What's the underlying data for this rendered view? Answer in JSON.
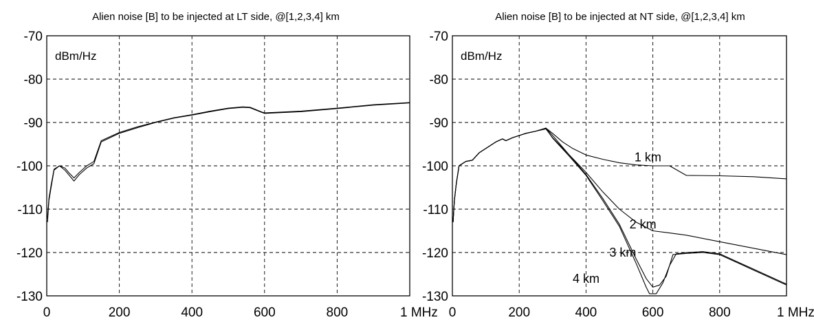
{
  "chart_data": [
    {
      "type": "line",
      "title": "Alien noise [B] to be injected at LT side, @[1,2,3,4] km",
      "ylabel": "dBm/Hz",
      "xlim": [
        0,
        1000
      ],
      "ylim": [
        -130,
        -70
      ],
      "xticks": [
        "0",
        "200",
        "400",
        "600",
        "800",
        "1 MHz"
      ],
      "yticks": [
        "-70",
        "-80",
        "-90",
        "-100",
        "-110",
        "-120",
        "-130"
      ],
      "grid": true,
      "series": [
        {
          "values": [
            [
              2,
              -113
            ],
            [
              6,
              -108
            ],
            [
              12,
              -105
            ],
            [
              20,
              -101
            ],
            [
              35,
              -100
            ],
            [
              50,
              -101
            ],
            [
              60,
              -102
            ],
            [
              75,
              -103.5
            ],
            [
              90,
              -102
            ],
            [
              110,
              -100.5
            ],
            [
              130,
              -99.5
            ],
            [
              150,
              -94.5
            ],
            [
              200,
              -92.5
            ],
            [
              250,
              -91.2
            ],
            [
              300,
              -90
            ],
            [
              350,
              -89
            ],
            [
              400,
              -88.3
            ],
            [
              450,
              -87.5
            ],
            [
              500,
              -86.8
            ],
            [
              540,
              -86.5
            ],
            [
              560,
              -86.6
            ],
            [
              590,
              -87.6
            ],
            [
              600,
              -87.9
            ],
            [
              700,
              -87.5
            ],
            [
              800,
              -86.8
            ],
            [
              900,
              -86
            ],
            [
              1000,
              -85.5
            ]
          ]
        },
        {
          "values": [
            [
              2,
              -112
            ],
            [
              6,
              -107.5
            ],
            [
              12,
              -104.5
            ],
            [
              20,
              -100.8
            ],
            [
              35,
              -100
            ],
            [
              50,
              -100.5
            ],
            [
              60,
              -101.5
            ],
            [
              75,
              -102.8
            ],
            [
              90,
              -101.5
            ],
            [
              110,
              -100
            ],
            [
              130,
              -99
            ],
            [
              150,
              -94.2
            ],
            [
              200,
              -92.3
            ],
            [
              250,
              -91
            ],
            [
              300,
              -89.9
            ],
            [
              350,
              -88.9
            ],
            [
              400,
              -88.2
            ],
            [
              450,
              -87.4
            ],
            [
              500,
              -86.7
            ],
            [
              540,
              -86.4
            ],
            [
              560,
              -86.5
            ],
            [
              590,
              -87.5
            ],
            [
              600,
              -87.8
            ],
            [
              700,
              -87.4
            ],
            [
              800,
              -86.7
            ],
            [
              900,
              -85.9
            ],
            [
              1000,
              -85.4
            ]
          ]
        }
      ]
    },
    {
      "type": "line",
      "title": "Alien noise [B] to be injected at NT side, @[1,2,3,4] km",
      "ylabel": "dBm/Hz",
      "xlim": [
        0,
        1000
      ],
      "ylim": [
        -130,
        -70
      ],
      "xticks": [
        "0",
        "200",
        "400",
        "600",
        "800",
        "1 MHz"
      ],
      "yticks": [
        "-70",
        "-80",
        "-90",
        "-100",
        "-110",
        "-120",
        "-130"
      ],
      "grid": true,
      "annotations": [
        {
          "text": "1 km",
          "x": 545,
          "y": -98
        },
        {
          "text": "2 km",
          "x": 530,
          "y": -113.5
        },
        {
          "text": "3 km",
          "x": 470,
          "y": -120
        },
        {
          "text": "4 km",
          "x": 360,
          "y": -126
        }
      ],
      "series": [
        {
          "values": [
            [
              2,
              -113
            ],
            [
              6,
              -108
            ],
            [
              12,
              -104
            ],
            [
              20,
              -100
            ],
            [
              40,
              -99
            ],
            [
              60,
              -98.7
            ],
            [
              80,
              -97
            ],
            [
              100,
              -96
            ],
            [
              130,
              -94.5
            ],
            [
              150,
              -93.8
            ],
            [
              160,
              -94.2
            ],
            [
              180,
              -93.5
            ],
            [
              220,
              -92.5
            ],
            [
              250,
              -92
            ],
            [
              280,
              -91.3
            ],
            [
              300,
              -92.5
            ],
            [
              330,
              -94.5
            ],
            [
              360,
              -96
            ],
            [
              400,
              -97.5
            ],
            [
              450,
              -98.5
            ],
            [
              500,
              -99.3
            ],
            [
              550,
              -99.8
            ],
            [
              600,
              -100
            ],
            [
              650,
              -100
            ],
            [
              700,
              -102.2
            ],
            [
              800,
              -102.3
            ],
            [
              900,
              -102.5
            ],
            [
              1000,
              -103
            ]
          ]
        },
        {
          "values": [
            [
              2,
              -113
            ],
            [
              6,
              -108
            ],
            [
              12,
              -104
            ],
            [
              20,
              -100
            ],
            [
              40,
              -99
            ],
            [
              60,
              -98.7
            ],
            [
              80,
              -97
            ],
            [
              100,
              -96
            ],
            [
              130,
              -94.5
            ],
            [
              150,
              -93.8
            ],
            [
              160,
              -94.2
            ],
            [
              180,
              -93.5
            ],
            [
              220,
              -92.5
            ],
            [
              250,
              -92
            ],
            [
              280,
              -91.3
            ],
            [
              300,
              -93
            ],
            [
              350,
              -97.5
            ],
            [
              400,
              -101.5
            ],
            [
              450,
              -106
            ],
            [
              500,
              -110
            ],
            [
              550,
              -113
            ],
            [
              600,
              -115
            ],
            [
              650,
              -115.5
            ],
            [
              700,
              -116
            ],
            [
              800,
              -117.5
            ],
            [
              900,
              -119
            ],
            [
              1000,
              -120.5
            ]
          ]
        },
        {
          "values": [
            [
              2,
              -113
            ],
            [
              6,
              -108
            ],
            [
              12,
              -104
            ],
            [
              20,
              -100
            ],
            [
              40,
              -99
            ],
            [
              60,
              -98.7
            ],
            [
              80,
              -97
            ],
            [
              100,
              -96
            ],
            [
              130,
              -94.5
            ],
            [
              150,
              -93.8
            ],
            [
              160,
              -94.2
            ],
            [
              180,
              -93.5
            ],
            [
              220,
              -92.5
            ],
            [
              250,
              -92
            ],
            [
              280,
              -91.5
            ],
            [
              300,
              -93.5
            ],
            [
              350,
              -97.5
            ],
            [
              400,
              -102
            ],
            [
              450,
              -107.5
            ],
            [
              500,
              -113.5
            ],
            [
              550,
              -121.5
            ],
            [
              580,
              -126
            ],
            [
              600,
              -128
            ],
            [
              620,
              -127.5
            ],
            [
              640,
              -125.5
            ],
            [
              660,
              -120.5
            ],
            [
              700,
              -120.2
            ],
            [
              750,
              -120
            ],
            [
              800,
              -120.5
            ],
            [
              900,
              -124
            ],
            [
              1000,
              -127.5
            ]
          ]
        },
        {
          "values": [
            [
              2,
              -113
            ],
            [
              6,
              -108
            ],
            [
              12,
              -104
            ],
            [
              20,
              -100
            ],
            [
              40,
              -99
            ],
            [
              60,
              -98.7
            ],
            [
              80,
              -97
            ],
            [
              100,
              -96
            ],
            [
              130,
              -94.5
            ],
            [
              150,
              -93.8
            ],
            [
              160,
              -94.2
            ],
            [
              180,
              -93.5
            ],
            [
              220,
              -92.5
            ],
            [
              250,
              -92
            ],
            [
              280,
              -91.4
            ],
            [
              300,
              -93.6
            ],
            [
              350,
              -97.8
            ],
            [
              400,
              -102.2
            ],
            [
              450,
              -108
            ],
            [
              500,
              -114
            ],
            [
              550,
              -122.5
            ],
            [
              580,
              -128
            ],
            [
              590,
              -129.5
            ],
            [
              610,
              -129.5
            ],
            [
              630,
              -127
            ],
            [
              650,
              -123
            ],
            [
              670,
              -120.3
            ],
            [
              700,
              -120
            ],
            [
              750,
              -119.8
            ],
            [
              800,
              -120.3
            ],
            [
              900,
              -123.8
            ],
            [
              1000,
              -127.3
            ]
          ]
        }
      ]
    }
  ]
}
